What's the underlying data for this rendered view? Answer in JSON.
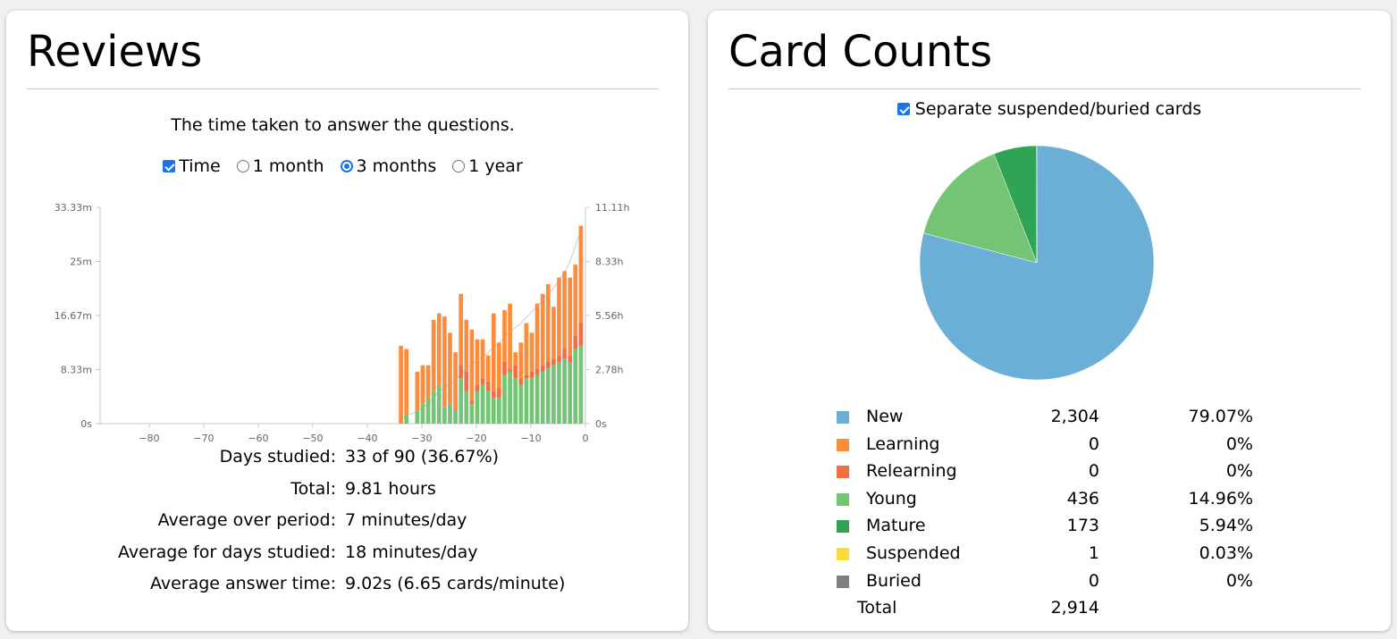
{
  "reviews": {
    "title": "Reviews",
    "subtitle": "The time taken to answer the questions.",
    "controls": {
      "time_label": "Time",
      "time_checked": true,
      "ranges": [
        {
          "label": "1 month",
          "selected": false
        },
        {
          "label": "3 months",
          "selected": true
        },
        {
          "label": "1 year",
          "selected": false
        }
      ]
    },
    "stats": [
      {
        "label": "Days studied:",
        "value": "33 of 90 (36.67%)"
      },
      {
        "label": "Total:",
        "value": "9.81 hours"
      },
      {
        "label": "Average over period:",
        "value": "7 minutes/day"
      },
      {
        "label": "Average for days studied:",
        "value": "18 minutes/day"
      },
      {
        "label": "Average answer time:",
        "value": "9.02s (6.65 cards/minute)"
      }
    ]
  },
  "chart_data": {
    "type": "bar",
    "stacked": true,
    "x_ticks": [
      -80,
      -70,
      -60,
      -50,
      -40,
      -30,
      -20,
      -10,
      0
    ],
    "xlim": [
      -89,
      0
    ],
    "y_left_ticks": [
      "0s",
      "8.33m",
      "16.67m",
      "25m",
      "33.33m"
    ],
    "y_right_ticks": [
      "0s",
      "2.78h",
      "5.56h",
      "8.33h",
      "11.11h"
    ],
    "ylim_minutes": [
      0,
      33.33
    ],
    "series_colors": {
      "young": "#74c476",
      "relearn": "#f46d43",
      "learn": "#fd8d3c",
      "cumulative": "#cccccc"
    },
    "x": [
      -34,
      -33,
      -31,
      -30,
      -29,
      -28,
      -27,
      -26,
      -25,
      -24,
      -23,
      -22,
      -21,
      -20,
      -19,
      -18,
      -17,
      -16,
      -15,
      -14,
      -13,
      -12,
      -11,
      -10,
      -9,
      -8,
      -7,
      -6,
      -5,
      -4,
      -3,
      -2,
      -1
    ],
    "young": [
      0,
      1.5,
      2,
      3,
      4,
      5,
      6,
      2.5,
      3,
      2,
      7,
      5,
      3,
      5,
      6,
      5,
      4,
      4,
      7.5,
      8,
      7,
      6,
      7,
      7,
      7.5,
      8,
      8.5,
      9,
      9.5,
      10,
      9.5,
      11.5,
      12
    ],
    "relearn": [
      0,
      0,
      0,
      0,
      0,
      0,
      0,
      0,
      0,
      0,
      2,
      3,
      0.5,
      1,
      1,
      1.5,
      1,
      1.5,
      2,
      0.5,
      2,
      1,
      0.5,
      1,
      1,
      1,
      1,
      1,
      1,
      1.5,
      1,
      2,
      3.5
    ],
    "learn": [
      12,
      10,
      6,
      6,
      5,
      11,
      11,
      14,
      11,
      9,
      11,
      8,
      11,
      7,
      6,
      4,
      12,
      7,
      8,
      10,
      2,
      5.5,
      8,
      6,
      10,
      11,
      12,
      8,
      12,
      12,
      12,
      11,
      15
    ],
    "cumulative_hours": [
      0.2,
      0.4,
      0.6,
      0.8,
      1,
      1.3,
      1.6,
      1.8,
      2,
      2.2,
      2.5,
      2.8,
      3,
      3.2,
      3.4,
      3.6,
      3.9,
      4.1,
      4.4,
      4.7,
      4.9,
      5.1,
      5.4,
      5.7,
      6,
      6.3,
      6.6,
      6.9,
      7.3,
      7.7,
      8.2,
      9,
      9.81
    ]
  },
  "card_counts": {
    "title": "Card Counts",
    "separate_label": "Separate suspended/buried cards",
    "separate_checked": true,
    "rows": [
      {
        "name": "New",
        "count": "2,304",
        "pct": "79.07%",
        "value": 2304,
        "color": "#6baed6"
      },
      {
        "name": "Learning",
        "count": "0",
        "pct": "0%",
        "value": 0,
        "color": "#fd8d3c"
      },
      {
        "name": "Relearning",
        "count": "0",
        "pct": "0%",
        "value": 0,
        "color": "#f46d43"
      },
      {
        "name": "Young",
        "count": "436",
        "pct": "14.96%",
        "value": 436,
        "color": "#74c476"
      },
      {
        "name": "Mature",
        "count": "173",
        "pct": "5.94%",
        "value": 173,
        "color": "#31a354"
      },
      {
        "name": "Suspended",
        "count": "1",
        "pct": "0.03%",
        "value": 1,
        "color": "#fddb3a"
      },
      {
        "name": "Buried",
        "count": "0",
        "pct": "0%",
        "value": 0,
        "color": "#7f7f7f"
      }
    ],
    "total_label": "Total",
    "total_count": "2,914"
  }
}
